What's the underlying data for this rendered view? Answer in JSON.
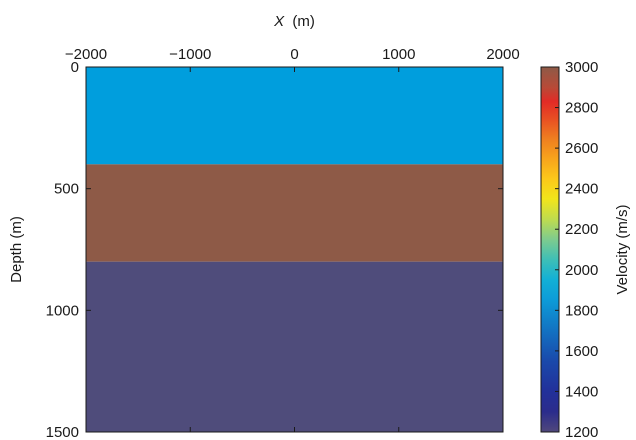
{
  "chart_data": {
    "type": "heatmap",
    "title": "",
    "xlabel": {
      "variable": "X",
      "unit": "(m)"
    },
    "ylabel": "Depth (m)",
    "xlim": [
      -2000,
      2000
    ],
    "ylim": [
      0,
      1500
    ],
    "y_reversed": true,
    "x_axis_position": "top",
    "xticks": [
      -2000,
      -1000,
      0,
      1000,
      2000
    ],
    "xtick_labels": [
      "−2000",
      "−1000",
      "0",
      "1000",
      "2000"
    ],
    "yticks": [
      0,
      500,
      1000,
      1500
    ],
    "ytick_labels": [
      "0",
      "500",
      "1000",
      "1500"
    ],
    "grid": false,
    "layers": [
      {
        "depth_top": 0,
        "depth_bottom": 400,
        "velocity": 1800,
        "color": "#009edd"
      },
      {
        "depth_top": 400,
        "depth_bottom": 800,
        "velocity": 2900,
        "color": "#8e5a47"
      },
      {
        "depth_top": 800,
        "depth_bottom": 1500,
        "velocity": 1250,
        "color": "#4f4c7b"
      }
    ],
    "colorbar": {
      "label": "Velocity (m/s)",
      "range": [
        1200,
        3000
      ],
      "ticks": [
        1200,
        1400,
        1600,
        1800,
        2000,
        2200,
        2400,
        2600,
        2800,
        3000
      ],
      "colormap": [
        {
          "value": 1200,
          "color": "#50487c"
        },
        {
          "value": 1300,
          "color": "#2b2c8c"
        },
        {
          "value": 1400,
          "color": "#22309a"
        },
        {
          "value": 1550,
          "color": "#1a49ab"
        },
        {
          "value": 1700,
          "color": "#1272c2"
        },
        {
          "value": 1850,
          "color": "#0d9bd8"
        },
        {
          "value": 1950,
          "color": "#12b0d6"
        },
        {
          "value": 2050,
          "color": "#3ebfb6"
        },
        {
          "value": 2150,
          "color": "#7ecb8e"
        },
        {
          "value": 2250,
          "color": "#bfdc4e"
        },
        {
          "value": 2350,
          "color": "#f2e51b"
        },
        {
          "value": 2450,
          "color": "#fcc81a"
        },
        {
          "value": 2550,
          "color": "#f7a31c"
        },
        {
          "value": 2650,
          "color": "#ef7d20"
        },
        {
          "value": 2750,
          "color": "#e84c23"
        },
        {
          "value": 2830,
          "color": "#e22b26"
        },
        {
          "value": 2900,
          "color": "#b84a37"
        },
        {
          "value": 3000,
          "color": "#8e5a47"
        }
      ]
    }
  }
}
